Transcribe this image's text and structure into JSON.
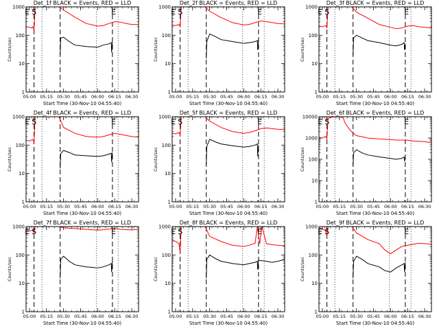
{
  "figure": {
    "xlabel": "Start Time (30-Nov-10 04:55:40)",
    "ylabel": "Counts/sec",
    "x_tick_labels": [
      "05:00",
      "05:15",
      "05:30",
      "05:45",
      "06:00",
      "06:15",
      "06:30"
    ],
    "y_tick_labels": [
      "1",
      "10",
      "100",
      "1000"
    ],
    "series_colors": {
      "events": "#000000",
      "lld": "#ff0000"
    },
    "line_styles": {
      "solid_marker": "dashed",
      "eclipse_marker": "dotted"
    }
  },
  "chart_data": [
    {
      "type": "line",
      "title": "Det_1f BLACK = Events, RED = LLD",
      "y_scale": "log",
      "ylim": [
        1,
        1000
      ],
      "xlim_minutes": [
        -3,
        96
      ],
      "grid": false,
      "legend": "none",
      "annotations": [
        {
          "text": "E",
          "x": -2
        },
        {
          "text": "S",
          "x": 4
        },
        {
          "text": "E",
          "x": 74
        }
      ],
      "vlines_dashed": [
        4,
        27,
        73
      ],
      "vlines_dotted": [
        11,
        59,
        78
      ],
      "series": [
        {
          "key": "lld",
          "x": [
            -3,
            0,
            2,
            3,
            4,
            5,
            8,
            10,
            11,
            12,
            14,
            20,
            26,
            30,
            40,
            50,
            60,
            65,
            70,
            75,
            80,
            85,
            90,
            96
          ],
          "values": [
            200,
            190,
            180,
            200,
            150,
            1000,
            1000,
            1000,
            1000,
            1000,
            1000,
            1000,
            1000,
            780,
            430,
            260,
            210,
            220,
            260,
            300,
            290,
            260,
            240,
            240
          ]
        },
        {
          "key": "events",
          "x": [
            27,
            27.5,
            30,
            35,
            40,
            50,
            60,
            65,
            70,
            72,
            72.3,
            73
          ],
          "values": [
            20,
            80,
            85,
            60,
            45,
            40,
            38,
            45,
            50,
            55,
            25,
            60
          ]
        }
      ]
    },
    {
      "type": "line",
      "title": "Det_2f BLACK = Events, RED = LLD",
      "y_scale": "log",
      "ylim": [
        1,
        1000
      ],
      "xlim_minutes": [
        -3,
        96
      ],
      "grid": false,
      "legend": "none",
      "annotations": [
        {
          "text": "E",
          "x": -2
        },
        {
          "text": "S",
          "x": 4
        },
        {
          "text": "E",
          "x": 74
        }
      ],
      "vlines_dashed": [
        4,
        27,
        73
      ],
      "vlines_dotted": [
        11,
        59,
        78
      ],
      "series": [
        {
          "key": "lld",
          "x": [
            -3,
            0,
            3,
            4,
            5,
            8,
            11,
            14,
            20,
            26,
            30,
            40,
            50,
            60,
            65,
            70,
            75,
            80,
            85,
            90,
            96
          ],
          "values": [
            230,
            220,
            240,
            200,
            1000,
            1000,
            1000,
            1000,
            1000,
            1000,
            700,
            420,
            280,
            230,
            240,
            280,
            320,
            300,
            280,
            260,
            250
          ]
        },
        {
          "key": "events",
          "x": [
            27,
            27.5,
            30,
            35,
            40,
            50,
            60,
            65,
            70,
            72,
            72.3,
            73
          ],
          "values": [
            15,
            60,
            110,
            90,
            70,
            60,
            52,
            55,
            60,
            65,
            30,
            70
          ]
        }
      ]
    },
    {
      "type": "line",
      "title": "Det_3f BLACK = Events, RED = LLD",
      "y_scale": "log",
      "ylim": [
        1,
        1000
      ],
      "xlim_minutes": [
        -3,
        96
      ],
      "grid": false,
      "legend": "none",
      "annotations": [
        {
          "text": "E",
          "x": -2
        },
        {
          "text": "S",
          "x": 4
        },
        {
          "text": "E",
          "x": 74
        }
      ],
      "vlines_dashed": [
        4,
        27,
        73
      ],
      "vlines_dotted": [
        11,
        59,
        78
      ],
      "series": [
        {
          "key": "lld",
          "x": [
            -3,
            0,
            3,
            4,
            5,
            8,
            11,
            14,
            20,
            26,
            30,
            40,
            50,
            60,
            65,
            70,
            75,
            80,
            85,
            90,
            96
          ],
          "values": [
            210,
            200,
            220,
            180,
            1000,
            1000,
            1000,
            1000,
            1000,
            1000,
            650,
            400,
            240,
            190,
            170,
            180,
            210,
            220,
            200,
            190,
            180
          ]
        },
        {
          "key": "events",
          "x": [
            27,
            27.5,
            30,
            35,
            40,
            50,
            60,
            65,
            70,
            72,
            72.3,
            73
          ],
          "values": [
            20,
            80,
            100,
            80,
            65,
            55,
            45,
            42,
            48,
            55,
            30,
            50
          ]
        }
      ]
    },
    {
      "type": "line",
      "title": "Det_4f BLACK = Events, RED = LLD",
      "y_scale": "log",
      "ylim": [
        1,
        1000
      ],
      "xlim_minutes": [
        -3,
        96
      ],
      "grid": false,
      "legend": "none",
      "annotations": [
        {
          "text": "E",
          "x": -2
        },
        {
          "text": "S",
          "x": 4
        },
        {
          "text": "E",
          "x": 74
        }
      ],
      "vlines_dashed": [
        4,
        27,
        73
      ],
      "vlines_dotted": [
        11,
        59,
        78
      ],
      "series": [
        {
          "key": "lld",
          "x": [
            -3,
            0,
            3,
            4,
            5,
            8,
            11,
            14,
            20,
            26,
            30,
            40,
            50,
            60,
            65,
            70,
            75,
            80,
            85,
            90,
            96
          ],
          "values": [
            150,
            140,
            160,
            120,
            1000,
            1000,
            1000,
            1000,
            1000,
            1000,
            420,
            260,
            200,
            190,
            200,
            230,
            260,
            240,
            220,
            200,
            190
          ]
        },
        {
          "key": "events",
          "x": [
            27,
            27.5,
            30,
            35,
            40,
            50,
            60,
            65,
            70,
            72,
            72.3,
            73
          ],
          "values": [
            15,
            50,
            65,
            55,
            45,
            42,
            40,
            42,
            48,
            52,
            25,
            55
          ]
        }
      ]
    },
    {
      "type": "line",
      "title": "Det_5f BLACK = Events, RED = LLD",
      "y_scale": "log",
      "ylim": [
        1,
        1000
      ],
      "xlim_minutes": [
        -3,
        96
      ],
      "grid": false,
      "legend": "none",
      "annotations": [
        {
          "text": "E",
          "x": -2
        },
        {
          "text": "S",
          "x": 4
        },
        {
          "text": "E",
          "x": 74
        }
      ],
      "vlines_dashed": [
        4,
        27,
        73
      ],
      "vlines_dotted": [
        11,
        59,
        78
      ],
      "series": [
        {
          "key": "lld",
          "x": [
            -3,
            0,
            3,
            4,
            5,
            8,
            11,
            14,
            20,
            26,
            30,
            40,
            50,
            60,
            65,
            70,
            75,
            80,
            85,
            90,
            96
          ],
          "values": [
            260,
            250,
            280,
            230,
            1000,
            1000,
            1000,
            1000,
            1000,
            1000,
            700,
            420,
            300,
            260,
            280,
            320,
            380,
            400,
            380,
            360,
            350
          ]
        },
        {
          "key": "events",
          "x": [
            27,
            27.5,
            30,
            35,
            40,
            50,
            60,
            65,
            70,
            72,
            72.3,
            73
          ],
          "values": [
            20,
            90,
            160,
            130,
            110,
            95,
            85,
            90,
            100,
            110,
            40,
            100
          ]
        }
      ]
    },
    {
      "type": "line",
      "title": "Det_6f BLACK = Events, RED = LLD",
      "y_scale": "log",
      "ylim": [
        1,
        10000
      ],
      "xlim_minutes": [
        -3,
        96
      ],
      "grid": false,
      "legend": "none",
      "annotations": [
        {
          "text": "E",
          "x": -2
        },
        {
          "text": "S",
          "x": 4
        },
        {
          "text": "E",
          "x": 74
        }
      ],
      "vlines_dashed": [
        4,
        27,
        73
      ],
      "vlines_dotted": [
        11,
        59,
        78
      ],
      "series": [
        {
          "key": "lld",
          "x": [
            -3,
            0,
            3,
            4,
            5,
            8,
            11,
            14,
            18,
            20,
            24,
            27,
            30,
            40,
            50,
            60,
            65,
            70,
            75,
            80,
            85,
            90,
            96
          ],
          "values": [
            1100,
            1000,
            1200,
            900,
            8500,
            9500,
            9800,
            9800,
            9800,
            5000,
            2500,
            1700,
            1300,
            1000,
            900,
            850,
            800,
            800,
            780,
            720,
            700,
            680,
            600
          ]
        },
        {
          "key": "events",
          "x": [
            27,
            27.5,
            30,
            35,
            40,
            50,
            60,
            65,
            70,
            72,
            72.3,
            73
          ],
          "values": [
            50,
            200,
            280,
            200,
            160,
            130,
            110,
            100,
            110,
            130,
            80,
            120
          ]
        }
      ]
    },
    {
      "type": "line",
      "title": "Det_7f BLACK = Events, RED = LLD",
      "y_scale": "log",
      "ylim": [
        1,
        1000
      ],
      "xlim_minutes": [
        -3,
        96
      ],
      "grid": false,
      "legend": "none",
      "annotations": [
        {
          "text": "E",
          "x": -2
        },
        {
          "text": "S",
          "x": 4
        },
        {
          "text": "E",
          "x": 74
        }
      ],
      "vlines_dashed": [
        4,
        27,
        73
      ],
      "vlines_dotted": [
        11,
        59,
        78
      ],
      "series": [
        {
          "key": "lld",
          "x": [
            -3,
            0,
            3,
            4,
            5,
            8,
            11,
            14,
            20,
            26,
            30,
            40,
            50,
            60,
            65,
            70,
            75,
            80,
            85,
            90,
            96
          ],
          "values": [
            800,
            700,
            750,
            600,
            1000,
            1000,
            1000,
            1000,
            1000,
            1000,
            900,
            850,
            800,
            750,
            780,
            820,
            850,
            800,
            780,
            760,
            800
          ]
        },
        {
          "key": "events",
          "x": [
            27,
            27.5,
            30,
            35,
            40,
            50,
            60,
            65,
            70,
            72,
            72.3,
            73
          ],
          "values": [
            15,
            70,
            90,
            60,
            45,
            38,
            35,
            38,
            45,
            50,
            25,
            60
          ]
        }
      ]
    },
    {
      "type": "line",
      "title": "Det_8f BLACK = Events, RED = LLD",
      "y_scale": "log",
      "ylim": [
        1,
        1000
      ],
      "xlim_minutes": [
        -3,
        96
      ],
      "grid": false,
      "legend": "none",
      "annotations": [
        {
          "text": "E",
          "x": -2
        },
        {
          "text": "S",
          "x": 4
        },
        {
          "text": "E",
          "x": 74
        }
      ],
      "vlines_dashed": [
        4,
        27,
        73
      ],
      "vlines_dotted": [
        11,
        59,
        78
      ],
      "series": [
        {
          "key": "lld",
          "x": [
            -3,
            0,
            3,
            4,
            5,
            8,
            11,
            14,
            20,
            26,
            30,
            40,
            50,
            60,
            65,
            70,
            72,
            74,
            76,
            80,
            85,
            90,
            96
          ],
          "values": [
            350,
            300,
            250,
            120,
            1000,
            1000,
            1000,
            1000,
            1000,
            1000,
            450,
            300,
            220,
            200,
            220,
            260,
            1000,
            250,
            1000,
            250,
            230,
            220,
            210
          ]
        },
        {
          "key": "events",
          "x": [
            27,
            27.5,
            30,
            35,
            40,
            50,
            60,
            65,
            70,
            72,
            72.3,
            73,
            80,
            85,
            90,
            96
          ],
          "values": [
            15,
            70,
            100,
            75,
            60,
            50,
            45,
            50,
            55,
            60,
            30,
            65,
            60,
            55,
            60,
            70
          ]
        }
      ]
    },
    {
      "type": "line",
      "title": "Det_9f BLACK = Events, RED = LLD",
      "y_scale": "log",
      "ylim": [
        1,
        1000
      ],
      "xlim_minutes": [
        -3,
        96
      ],
      "grid": false,
      "legend": "none",
      "annotations": [
        {
          "text": "E",
          "x": -2
        },
        {
          "text": "S",
          "x": 4
        },
        {
          "text": "E",
          "x": 74
        }
      ],
      "vlines_dashed": [
        4,
        27,
        73
      ],
      "vlines_dotted": [
        11,
        59,
        78
      ],
      "series": [
        {
          "key": "lld",
          "x": [
            -3,
            0,
            3,
            4,
            5,
            8,
            11,
            14,
            20,
            26,
            30,
            40,
            50,
            55,
            60,
            65,
            70,
            75,
            80,
            85,
            90,
            96
          ],
          "values": [
            900,
            850,
            700,
            450,
            1000,
            1000,
            1000,
            1000,
            1000,
            1000,
            600,
            350,
            250,
            150,
            110,
            150,
            200,
            220,
            240,
            260,
            250,
            240
          ]
        },
        {
          "key": "events",
          "x": [
            27,
            27.5,
            30,
            35,
            40,
            50,
            55,
            60,
            65,
            70,
            72,
            72.3,
            73
          ],
          "values": [
            15,
            60,
            90,
            70,
            50,
            38,
            28,
            25,
            35,
            45,
            50,
            25,
            55
          ]
        }
      ]
    }
  ]
}
